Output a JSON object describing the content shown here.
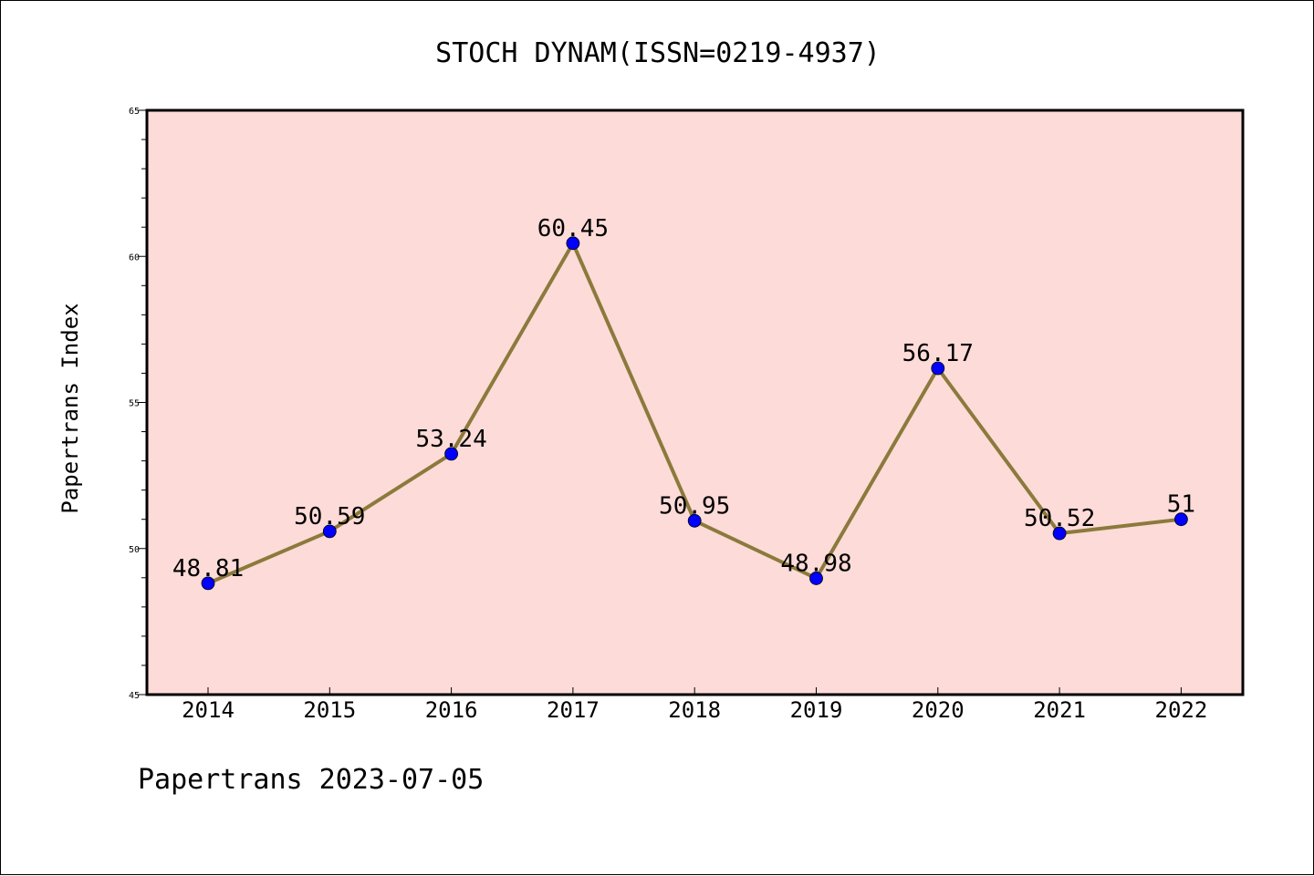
{
  "chart_data": {
    "type": "line",
    "title": "STOCH DYNAM(ISSN=0219-4937)",
    "xlabel": "",
    "ylabel": "Papertrans Index",
    "categories": [
      "2014",
      "2015",
      "2016",
      "2017",
      "2018",
      "2019",
      "2020",
      "2021",
      "2022"
    ],
    "series": [
      {
        "values": [
          48.81,
          50.59,
          53.24,
          60.45,
          50.95,
          48.98,
          56.17,
          50.52,
          51
        ]
      }
    ],
    "data_labels": [
      "48.81",
      "50.59",
      "53.24",
      "60.45",
      "50.95",
      "48.98",
      "56.17",
      "50.52",
      "51"
    ],
    "ylim": [
      45,
      65
    ],
    "yticks": [
      "45",
      "50",
      "55",
      "60",
      "65"
    ],
    "grid": false,
    "legend": "none",
    "colors": {
      "plot_background": "#fddbd8",
      "line": "#8b7a3c",
      "marker": "#0000ff"
    }
  },
  "footer": {
    "text": "Papertrans 2023-07-05"
  }
}
